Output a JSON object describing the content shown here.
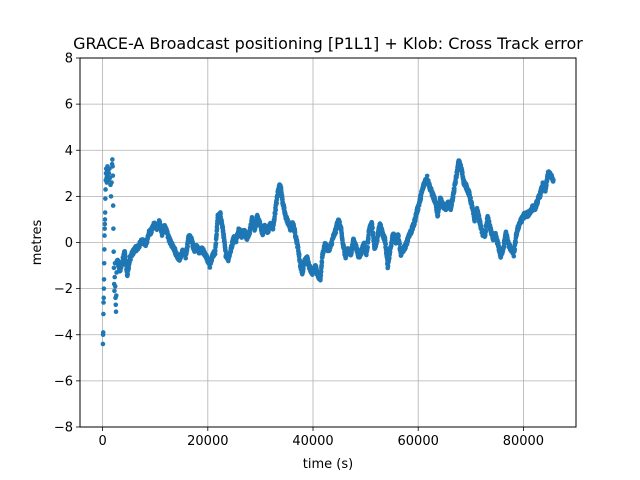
{
  "chart_data": {
    "type": "scatter",
    "title": "GRACE-A Broadcast positioning [P1L1] + Klob: Cross Track error",
    "xlabel": "time (s)",
    "ylabel": "metres",
    "xlim": [
      -4300,
      90000
    ],
    "ylim": [
      -8,
      8
    ],
    "xticks": [
      0,
      20000,
      40000,
      60000,
      80000
    ],
    "yticks": [
      -8,
      -6,
      -4,
      -2,
      0,
      2,
      4,
      6,
      8
    ],
    "xtick_labels": [
      "0",
      "20000",
      "40000",
      "60000",
      "80000"
    ],
    "ytick_labels": [
      "−8",
      "−6",
      "−4",
      "−2",
      "0",
      "2",
      "4",
      "6",
      "8"
    ],
    "grid": true,
    "marker_color": "#1f77b4",
    "series": [
      {
        "initial_points": [
          [
            60,
            -4.4
          ],
          [
            90,
            -4.0
          ],
          [
            120,
            -3.9
          ],
          [
            150,
            -3.1
          ],
          [
            180,
            -2.6
          ],
          [
            210,
            -2.4
          ],
          [
            240,
            -2.0
          ],
          [
            270,
            -1.6
          ],
          [
            300,
            -0.9
          ],
          [
            330,
            -0.3
          ],
          [
            360,
            0.3
          ],
          [
            390,
            0.6
          ],
          [
            420,
            0.8
          ],
          [
            450,
            1.0
          ],
          [
            480,
            1.3
          ],
          [
            520,
            1.9
          ],
          [
            560,
            2.3
          ],
          [
            600,
            2.7
          ],
          [
            640,
            3.0
          ],
          [
            680,
            3.2
          ],
          [
            720,
            3.0
          ],
          [
            760,
            2.8
          ],
          [
            800,
            2.6
          ],
          [
            840,
            2.9
          ],
          [
            880,
            3.1
          ],
          [
            920,
            3.3
          ],
          [
            960,
            3.1
          ],
          [
            1000,
            2.9
          ],
          [
            1100,
            2.7
          ],
          [
            1200,
            3.0
          ],
          [
            1300,
            3.2
          ],
          [
            1400,
            2.8
          ],
          [
            1500,
            2.5
          ],
          [
            1600,
            2.0
          ],
          [
            1700,
            2.6
          ],
          [
            1800,
            3.4
          ],
          [
            1850,
            3.6
          ],
          [
            1900,
            3.3
          ],
          [
            1950,
            2.9
          ],
          [
            2000,
            1.6
          ],
          [
            2050,
            0.6
          ],
          [
            2100,
            -0.4
          ],
          [
            2150,
            -1.1
          ],
          [
            2200,
            -1.8
          ],
          [
            2250,
            -2.1
          ],
          [
            2300,
            -1.5
          ],
          [
            2350,
            -0.9
          ],
          [
            2400,
            -1.9
          ],
          [
            2450,
            -2.4
          ],
          [
            2500,
            -2.7
          ],
          [
            2550,
            -3.0
          ],
          [
            2600,
            -2.3
          ],
          [
            2650,
            -1.3
          ],
          [
            2700,
            -0.8
          ]
        ],
        "profile": [
          [
            2800,
            -0.8
          ],
          [
            3300,
            -1.2
          ],
          [
            3700,
            -0.9
          ],
          [
            4200,
            -0.4
          ],
          [
            4700,
            -1.4
          ],
          [
            5200,
            -0.7
          ],
          [
            5600,
            -0.5
          ],
          [
            6100,
            -0.3
          ],
          [
            6800,
            -0.2
          ],
          [
            7500,
            0.1
          ],
          [
            8200,
            -0.1
          ],
          [
            8800,
            0.4
          ],
          [
            9300,
            0.5
          ],
          [
            9800,
            0.8
          ],
          [
            10300,
            0.6
          ],
          [
            10800,
            0.9
          ],
          [
            11300,
            0.4
          ],
          [
            11800,
            0.7
          ],
          [
            12400,
            0.3
          ],
          [
            12900,
            0.0
          ],
          [
            13500,
            -0.2
          ],
          [
            14000,
            -0.5
          ],
          [
            14600,
            -0.7
          ],
          [
            15200,
            -0.4
          ],
          [
            15800,
            -0.6
          ],
          [
            16400,
            0.3
          ],
          [
            16900,
            0.1
          ],
          [
            17400,
            -0.3
          ],
          [
            17900,
            -0.2
          ],
          [
            18400,
            -0.4
          ],
          [
            18900,
            -0.3
          ],
          [
            19400,
            -0.5
          ],
          [
            19900,
            -0.7
          ],
          [
            20400,
            -1.0
          ],
          [
            20900,
            -0.6
          ],
          [
            21400,
            -0.4
          ],
          [
            21900,
            1.1
          ],
          [
            22400,
            1.2
          ],
          [
            22900,
            0.5
          ],
          [
            23400,
            -0.5
          ],
          [
            23900,
            -0.7
          ],
          [
            24400,
            -0.3
          ],
          [
            24900,
            0.2
          ],
          [
            25400,
            0.1
          ],
          [
            25900,
            0.6
          ],
          [
            26400,
            0.3
          ],
          [
            26900,
            0.5
          ],
          [
            27400,
            0.2
          ],
          [
            27900,
            0.4
          ],
          [
            28400,
            1.0
          ],
          [
            28900,
            0.6
          ],
          [
            29400,
            1.1
          ],
          [
            29900,
            0.8
          ],
          [
            30400,
            0.4
          ],
          [
            30900,
            0.7
          ],
          [
            31400,
            0.5
          ],
          [
            31900,
            0.8
          ],
          [
            32400,
            0.6
          ],
          [
            32900,
            1.5
          ],
          [
            33400,
            2.3
          ],
          [
            33800,
            2.5
          ],
          [
            34200,
            1.8
          ],
          [
            34700,
            1.2
          ],
          [
            35200,
            0.9
          ],
          [
            35700,
            0.6
          ],
          [
            36200,
            0.8
          ],
          [
            36700,
            0.3
          ],
          [
            37200,
            -0.3
          ],
          [
            37600,
            -1.0
          ],
          [
            38000,
            -1.3
          ],
          [
            38400,
            -0.8
          ],
          [
            38900,
            -0.7
          ],
          [
            39400,
            -1.1
          ],
          [
            39900,
            -1.3
          ],
          [
            40400,
            -1.0
          ],
          [
            40900,
            -1.4
          ],
          [
            41400,
            -1.6
          ],
          [
            41800,
            -0.5
          ],
          [
            42300,
            -0.1
          ],
          [
            42800,
            -0.3
          ],
          [
            43300,
            -0.2
          ],
          [
            43800,
            0.2
          ],
          [
            44300,
            0.5
          ],
          [
            44800,
            1.0
          ],
          [
            45300,
            0.6
          ],
          [
            45700,
            -0.1
          ],
          [
            46200,
            -0.6
          ],
          [
            46700,
            -0.3
          ],
          [
            47200,
            -0.5
          ],
          [
            47700,
            0.1
          ],
          [
            48200,
            -0.2
          ],
          [
            48700,
            -0.6
          ],
          [
            49200,
            -0.4
          ],
          [
            49700,
            -0.1
          ],
          [
            50200,
            -0.5
          ],
          [
            50700,
            0.6
          ],
          [
            51200,
            0.8
          ],
          [
            51700,
            -0.2
          ],
          [
            52200,
            0.1
          ],
          [
            52700,
            0.8
          ],
          [
            53200,
            0.4
          ],
          [
            53700,
            0.1
          ],
          [
            54200,
            -1.0
          ],
          [
            54700,
            -0.3
          ],
          [
            55200,
            0.4
          ],
          [
            55700,
            0.0
          ],
          [
            56200,
            0.3
          ],
          [
            56700,
            -0.5
          ],
          [
            57200,
            -0.3
          ],
          [
            57700,
            -0.1
          ],
          [
            58200,
            0.3
          ],
          [
            58700,
            0.5
          ],
          [
            59200,
            0.8
          ],
          [
            59700,
            1.3
          ],
          [
            60200,
            1.7
          ],
          [
            60700,
            2.2
          ],
          [
            61200,
            2.6
          ],
          [
            61700,
            2.8
          ],
          [
            62200,
            2.4
          ],
          [
            62700,
            2.1
          ],
          [
            63200,
            1.8
          ],
          [
            63700,
            1.2
          ],
          [
            64200,
            1.9
          ],
          [
            64700,
            1.6
          ],
          [
            65200,
            1.5
          ],
          [
            65700,
            1.7
          ],
          [
            66200,
            1.5
          ],
          [
            66700,
            2.1
          ],
          [
            67200,
            2.8
          ],
          [
            67700,
            3.5
          ],
          [
            68200,
            3.2
          ],
          [
            68700,
            2.6
          ],
          [
            69200,
            2.4
          ],
          [
            69700,
            2.1
          ],
          [
            70200,
            1.6
          ],
          [
            70700,
            1.0
          ],
          [
            71200,
            1.4
          ],
          [
            71700,
            0.9
          ],
          [
            72200,
            0.4
          ],
          [
            72700,
            0.3
          ],
          [
            73200,
            1.1
          ],
          [
            73700,
            0.6
          ],
          [
            74200,
            0.2
          ],
          [
            74700,
            0.3
          ],
          [
            75200,
            -0.1
          ],
          [
            75700,
            -0.6
          ],
          [
            76200,
            -0.2
          ],
          [
            76700,
            0.4
          ],
          [
            77200,
            -0.1
          ],
          [
            77700,
            -0.3
          ],
          [
            78200,
            -0.5
          ],
          [
            78700,
            0.4
          ],
          [
            79200,
            0.8
          ],
          [
            79700,
            1.0
          ],
          [
            80200,
            1.2
          ],
          [
            80700,
            1.2
          ],
          [
            81200,
            1.3
          ],
          [
            81700,
            1.5
          ],
          [
            82200,
            1.5
          ],
          [
            82700,
            1.8
          ],
          [
            83200,
            2.1
          ],
          [
            83700,
            2.5
          ],
          [
            84200,
            2.3
          ],
          [
            84700,
            3.0
          ],
          [
            85200,
            2.9
          ],
          [
            85700,
            2.7
          ]
        ],
        "profile_step_s": 30
      }
    ]
  }
}
